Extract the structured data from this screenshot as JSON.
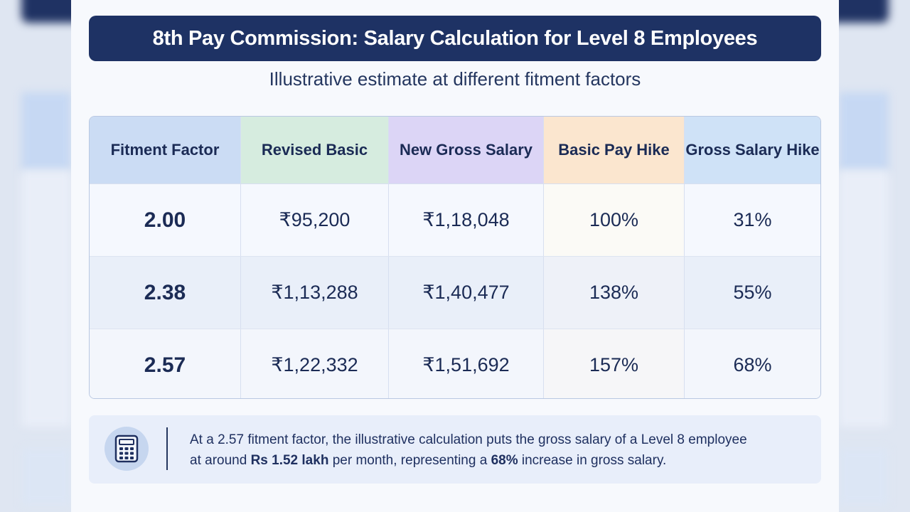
{
  "header": {
    "title": "8th Pay Commission: Salary Calculation for Level 8 Employees",
    "subtitle": "Illustrative estimate at different fitment factors"
  },
  "table": {
    "columns": [
      "Fitment Factor",
      "Revised Basic",
      "New Gross Salary",
      "Basic Pay Hike",
      "Gross Salary Hike"
    ],
    "column_colors": [
      "#cbdcf4",
      "#d6ecdf",
      "#dcd5f6",
      "#fbe6cf",
      "#cfe2f7"
    ],
    "rows": [
      [
        "2.00",
        "₹95,200",
        "₹1,18,048",
        "100%",
        "31%"
      ],
      [
        "2.38",
        "₹1,13,288",
        "₹1,40,477",
        "138%",
        "55%"
      ],
      [
        "2.57",
        "₹1,22,332",
        "₹1,51,692",
        "157%",
        "68%"
      ]
    ]
  },
  "note": {
    "icon": "calculator-icon",
    "line1": "At a 2.57 fitment factor, the illustrative calculation puts the gross salary of a Level 8 employee",
    "line2_a": "at around ",
    "line2_b": "Rs 1.52 lakh",
    "line2_c": " per month, representing a ",
    "line2_d": "68%",
    "line2_e": " increase in gross salary."
  },
  "colors": {
    "title_bg": "#1e3264",
    "text": "#1b2b55"
  }
}
